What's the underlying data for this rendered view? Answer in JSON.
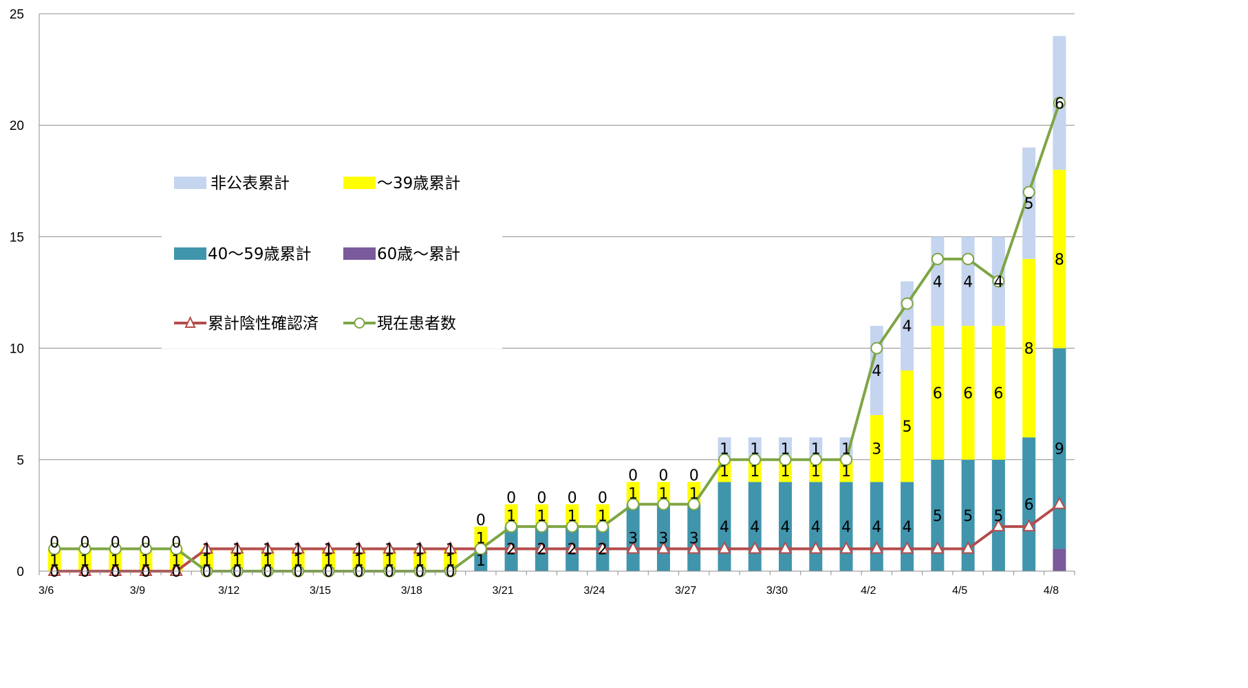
{
  "colors": {
    "unpublished": "#c5d5ef",
    "under39": "#ffff00",
    "age40to59": "#4095ad",
    "age60plus": "#7a5a9a",
    "negative_line": "#b44c4c",
    "current_line": "#7ea544",
    "grid": "#8c8c8c"
  },
  "chart_data": {
    "type": "bar",
    "xlabel": "",
    "ylabel": "",
    "ylim": [
      0,
      25
    ],
    "y_ticks": [
      "0",
      "5",
      "10",
      "15",
      "20",
      "25"
    ],
    "grid": true,
    "legend_position": "left-middle",
    "categories": [
      "3/6",
      "3/7",
      "3/8",
      "3/9",
      "3/10",
      "3/11",
      "3/12",
      "3/13",
      "3/14",
      "3/15",
      "3/16",
      "3/17",
      "3/18",
      "3/19",
      "3/20",
      "3/21",
      "3/22",
      "3/23",
      "3/24",
      "3/25",
      "3/26",
      "3/27",
      "3/28",
      "3/29",
      "3/30",
      "3/31",
      "4/1",
      "4/2",
      "4/3",
      "4/4",
      "4/5",
      "4/6",
      "4/7",
      "4/8"
    ],
    "x_tick_labels": [
      "3/6",
      "",
      "",
      "3/9",
      "",
      "",
      "3/12",
      "",
      "",
      "3/15",
      "",
      "",
      "3/18",
      "",
      "",
      "3/21",
      "",
      "",
      "3/24",
      "",
      "",
      "3/27",
      "",
      "",
      "3/30",
      "",
      "",
      "4/2",
      "",
      "",
      "4/5",
      "",
      "",
      "4/8"
    ],
    "stack_order_bottom_to_top": [
      "60歳～累計",
      "40～59歳累計",
      "～39歳累計",
      "非公表累計"
    ],
    "series": [
      {
        "name": "非公表累計",
        "kind": "bar",
        "color_key": "unpublished",
        "values": [
          0,
          0,
          0,
          0,
          0,
          0,
          0,
          0,
          0,
          0,
          0,
          0,
          0,
          0,
          0,
          0,
          0,
          0,
          0,
          0,
          0,
          0,
          1,
          1,
          1,
          1,
          1,
          4,
          4,
          4,
          4,
          4,
          5,
          6
        ]
      },
      {
        "name": "～39歳累計",
        "kind": "bar",
        "color_key": "under39",
        "values": [
          1,
          1,
          1,
          1,
          1,
          1,
          1,
          1,
          1,
          1,
          1,
          1,
          1,
          1,
          1,
          1,
          1,
          1,
          1,
          1,
          1,
          1,
          1,
          1,
          1,
          1,
          1,
          3,
          5,
          6,
          6,
          6,
          8,
          8
        ]
      },
      {
        "name": "40～59歳累計",
        "kind": "bar",
        "color_key": "age40to59",
        "values": [
          0,
          0,
          0,
          0,
          0,
          0,
          0,
          0,
          0,
          0,
          0,
          0,
          0,
          0,
          1,
          2,
          2,
          2,
          2,
          3,
          3,
          3,
          4,
          4,
          4,
          4,
          4,
          4,
          4,
          5,
          5,
          5,
          6,
          9
        ]
      },
      {
        "name": "60歳～累計",
        "kind": "bar",
        "color_key": "age60plus",
        "values": [
          0,
          0,
          0,
          0,
          0,
          0,
          0,
          0,
          0,
          0,
          0,
          0,
          0,
          0,
          0,
          0,
          0,
          0,
          0,
          0,
          0,
          0,
          0,
          0,
          0,
          0,
          0,
          0,
          0,
          0,
          0,
          0,
          0,
          1
        ]
      },
      {
        "name": "累計陰性確認済",
        "kind": "line",
        "marker": "triangle",
        "color_key": "negative_line",
        "values": [
          0,
          0,
          0,
          0,
          0,
          1,
          1,
          1,
          1,
          1,
          1,
          1,
          1,
          1,
          1,
          1,
          1,
          1,
          1,
          1,
          1,
          1,
          1,
          1,
          1,
          1,
          1,
          1,
          1,
          1,
          1,
          2,
          2,
          3
        ]
      },
      {
        "name": "現在患者数",
        "kind": "line",
        "marker": "circle",
        "color_key": "current_line",
        "values": [
          1,
          1,
          1,
          1,
          1,
          0,
          0,
          0,
          0,
          0,
          0,
          0,
          0,
          0,
          1,
          2,
          2,
          2,
          2,
          3,
          3,
          3,
          5,
          5,
          5,
          5,
          5,
          10,
          12,
          14,
          14,
          13,
          17,
          21
        ]
      }
    ],
    "bar_data_labels": {
      "非公表累計": [
        "0",
        "0",
        "0",
        "0",
        "0",
        "",
        "",
        "",
        "",
        "",
        "",
        "",
        "",
        "",
        "0",
        "0",
        "0",
        "0",
        "0",
        "0",
        "0",
        "0",
        "1",
        "1",
        "1",
        "1",
        "1",
        "4",
        "4",
        "4",
        "4",
        "4",
        "5",
        "6"
      ],
      "～39歳累計": [
        "1",
        "1",
        "1",
        "1",
        "1",
        "1",
        "1",
        "1",
        "1",
        "1",
        "1",
        "1",
        "1",
        "1",
        "1",
        "1",
        "1",
        "1",
        "1",
        "1",
        "1",
        "1",
        "1",
        "1",
        "1",
        "1",
        "1",
        "3",
        "5",
        "6",
        "6",
        "6",
        "8",
        "8"
      ],
      "40～59歳累計": [
        "",
        "",
        "",
        "",
        "",
        "",
        "",
        "",
        "",
        "",
        "",
        "",
        "",
        "",
        "1",
        "2",
        "2",
        "2",
        "2",
        "3",
        "3",
        "3",
        "4",
        "4",
        "4",
        "4",
        "4",
        "4",
        "4",
        "5",
        "5",
        "5",
        "6",
        "9"
      ]
    },
    "negative_line_labels": [
      "0",
      "0",
      "0",
      "0",
      "0",
      "1",
      "1",
      "1",
      "1",
      "1",
      "1",
      "1",
      "1",
      "1",
      "",
      "",
      "",
      "",
      "",
      "",
      "",
      "",
      "",
      "",
      "",
      "",
      "",
      "",
      "",
      "",
      "",
      "",
      "",
      ""
    ],
    "current_line_labels": [
      "",
      "",
      "",
      "",
      "",
      "0",
      "0",
      "0",
      "0",
      "0",
      "0",
      "0",
      "0",
      "0",
      "",
      "",
      "",
      "",
      "",
      "",
      "",
      "",
      "",
      "",
      "",
      "",
      "",
      "",
      "",
      "",
      "",
      "",
      "",
      ""
    ]
  }
}
